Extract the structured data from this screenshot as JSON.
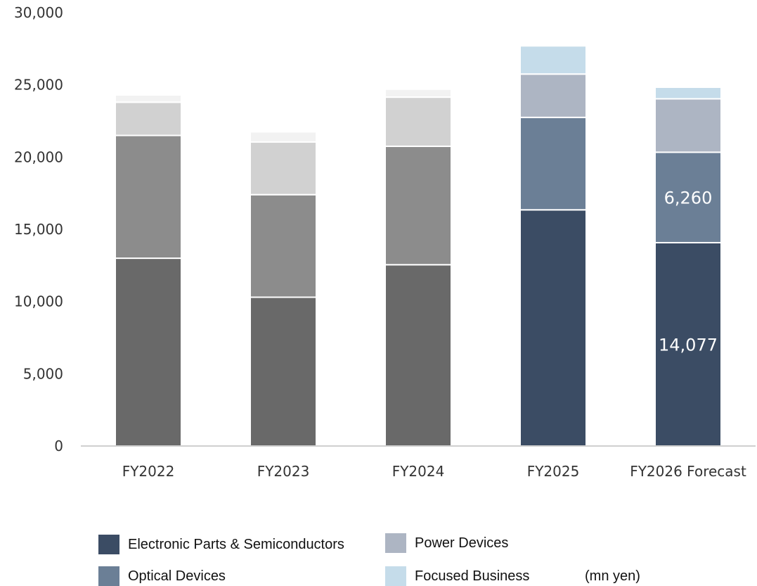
{
  "chart_data": {
    "type": "bar",
    "stacked": true,
    "categories": [
      "FY2022",
      "FY2023",
      "FY2024",
      "FY2025",
      "FY2026 Forecast"
    ],
    "ylim": [
      0,
      30000
    ],
    "yticks": [
      0,
      5000,
      10000,
      15000,
      20000,
      25000,
      30000
    ],
    "ytick_labels": [
      "0",
      "5,000",
      "10,000",
      "15,000",
      "20,000",
      "25,000",
      "30,000"
    ],
    "grid": false,
    "unit_note": "(mn yen)",
    "series": [
      {
        "name": "Electronic Parts & Semiconductors",
        "values": [
          13000,
          10300,
          12550,
          16350,
          14077
        ],
        "colors": [
          "#696969",
          "#696969",
          "#696969",
          "#3b4c64",
          "#3b4c64"
        ],
        "data_labels": [
          "",
          "",
          "",
          "",
          "14,077"
        ]
      },
      {
        "name": "Optical Devices",
        "values": [
          8500,
          7100,
          8200,
          6400,
          6260
        ],
        "colors": [
          "#8c8c8c",
          "#8c8c8c",
          "#8c8c8c",
          "#6b7f96",
          "#6b7f96"
        ],
        "data_labels": [
          "",
          "",
          "",
          "",
          "6,260"
        ]
      },
      {
        "name": "Power Devices",
        "values": [
          2300,
          3650,
          3400,
          3000,
          3700
        ],
        "colors": [
          "#d1d1d1",
          "#d1d1d1",
          "#d1d1d1",
          "#adb5c3",
          "#adb5c3"
        ],
        "data_labels": [
          "",
          "",
          "",
          "",
          ""
        ]
      },
      {
        "name": "Focused Business",
        "values": [
          500,
          700,
          550,
          1950,
          800
        ],
        "colors": [
          "#f2f2f2",
          "#f2f2f2",
          "#f2f2f2",
          "#c5dcea",
          "#c5dcea"
        ],
        "data_labels": [
          "",
          "",
          "",
          "",
          ""
        ]
      }
    ],
    "legend_colors": [
      "#3b4c64",
      "#6b7f96",
      "#adb5c3",
      "#c5dcea"
    ],
    "legend_placement": "bottom"
  }
}
